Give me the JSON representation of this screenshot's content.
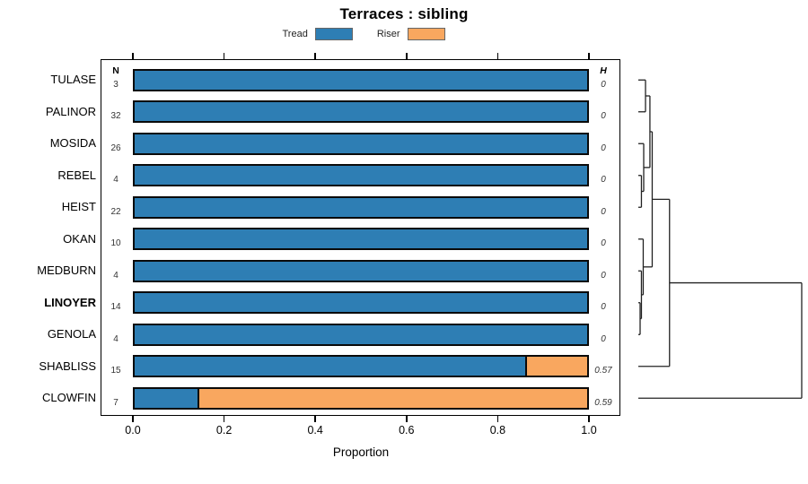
{
  "title": "Terraces : sibling",
  "legend": [
    {
      "label": "Tread",
      "color": "#2E7EB4"
    },
    {
      "label": "Riser",
      "color": "#F9A75F"
    }
  ],
  "chart_data": {
    "type": "bar",
    "stacked": true,
    "orientation": "horizontal",
    "title": "Terraces : sibling",
    "xlabel": "Proportion",
    "xlim": [
      0,
      1
    ],
    "x_ticks": [
      "0.0",
      "0.2",
      "0.4",
      "0.6",
      "0.8",
      "1.0"
    ],
    "x_tick_values": [
      0.0,
      0.2,
      0.4,
      0.6,
      0.8,
      1.0
    ],
    "n_header": "N",
    "h_header": "H",
    "categories": [
      "TULASE",
      "PALINOR",
      "MOSIDA",
      "REBEL",
      "HEIST",
      "OKAN",
      "MEDBURN",
      "LINOYER",
      "GENOLA",
      "SHABLISS",
      "CLOWFIN"
    ],
    "bold_category": "LINOYER",
    "n_values": [
      3,
      32,
      26,
      4,
      22,
      10,
      4,
      14,
      4,
      15,
      7
    ],
    "h_values": [
      "0",
      "0",
      "0",
      "0",
      "0",
      "0",
      "0",
      "0",
      "0",
      "0.57",
      "0.59"
    ],
    "series": [
      {
        "name": "Tread",
        "color": "#2E7EB4",
        "values": [
          1.0,
          1.0,
          1.0,
          1.0,
          1.0,
          1.0,
          1.0,
          1.0,
          1.0,
          0.867,
          0.143
        ]
      },
      {
        "name": "Riser",
        "color": "#F9A75F",
        "values": [
          0.0,
          0.0,
          0.0,
          0.0,
          0.0,
          0.0,
          0.0,
          0.0,
          0.0,
          0.133,
          0.857
        ]
      }
    ],
    "grid": false,
    "legend_position": "top"
  },
  "dendrogram": {
    "line_color": "#222222",
    "leaves": [
      "TULASE",
      "PALINOR",
      "MOSIDA",
      "REBEL",
      "HEIST",
      "OKAN",
      "MEDBURN",
      "LINOYER",
      "GENOLA",
      "SHABLISS",
      "CLOWFIN"
    ],
    "merges": [
      {
        "a": "L0",
        "b": "L1",
        "h": 0.044
      },
      {
        "a": "L3",
        "b": "L4",
        "h": 0.019
      },
      {
        "a": "L2",
        "b": "M1",
        "h": 0.033
      },
      {
        "a": "M0",
        "b": "M2",
        "h": 0.071
      },
      {
        "a": "L7",
        "b": "L8",
        "h": 0.011
      },
      {
        "a": "L6",
        "b": "M4",
        "h": 0.019
      },
      {
        "a": "L5",
        "b": "M5",
        "h": 0.03
      },
      {
        "a": "M3",
        "b": "M6",
        "h": 0.085
      },
      {
        "a": "M7",
        "b": "L9",
        "h": 0.191
      },
      {
        "a": "M8",
        "b": "L10",
        "h": 1.0
      }
    ]
  }
}
